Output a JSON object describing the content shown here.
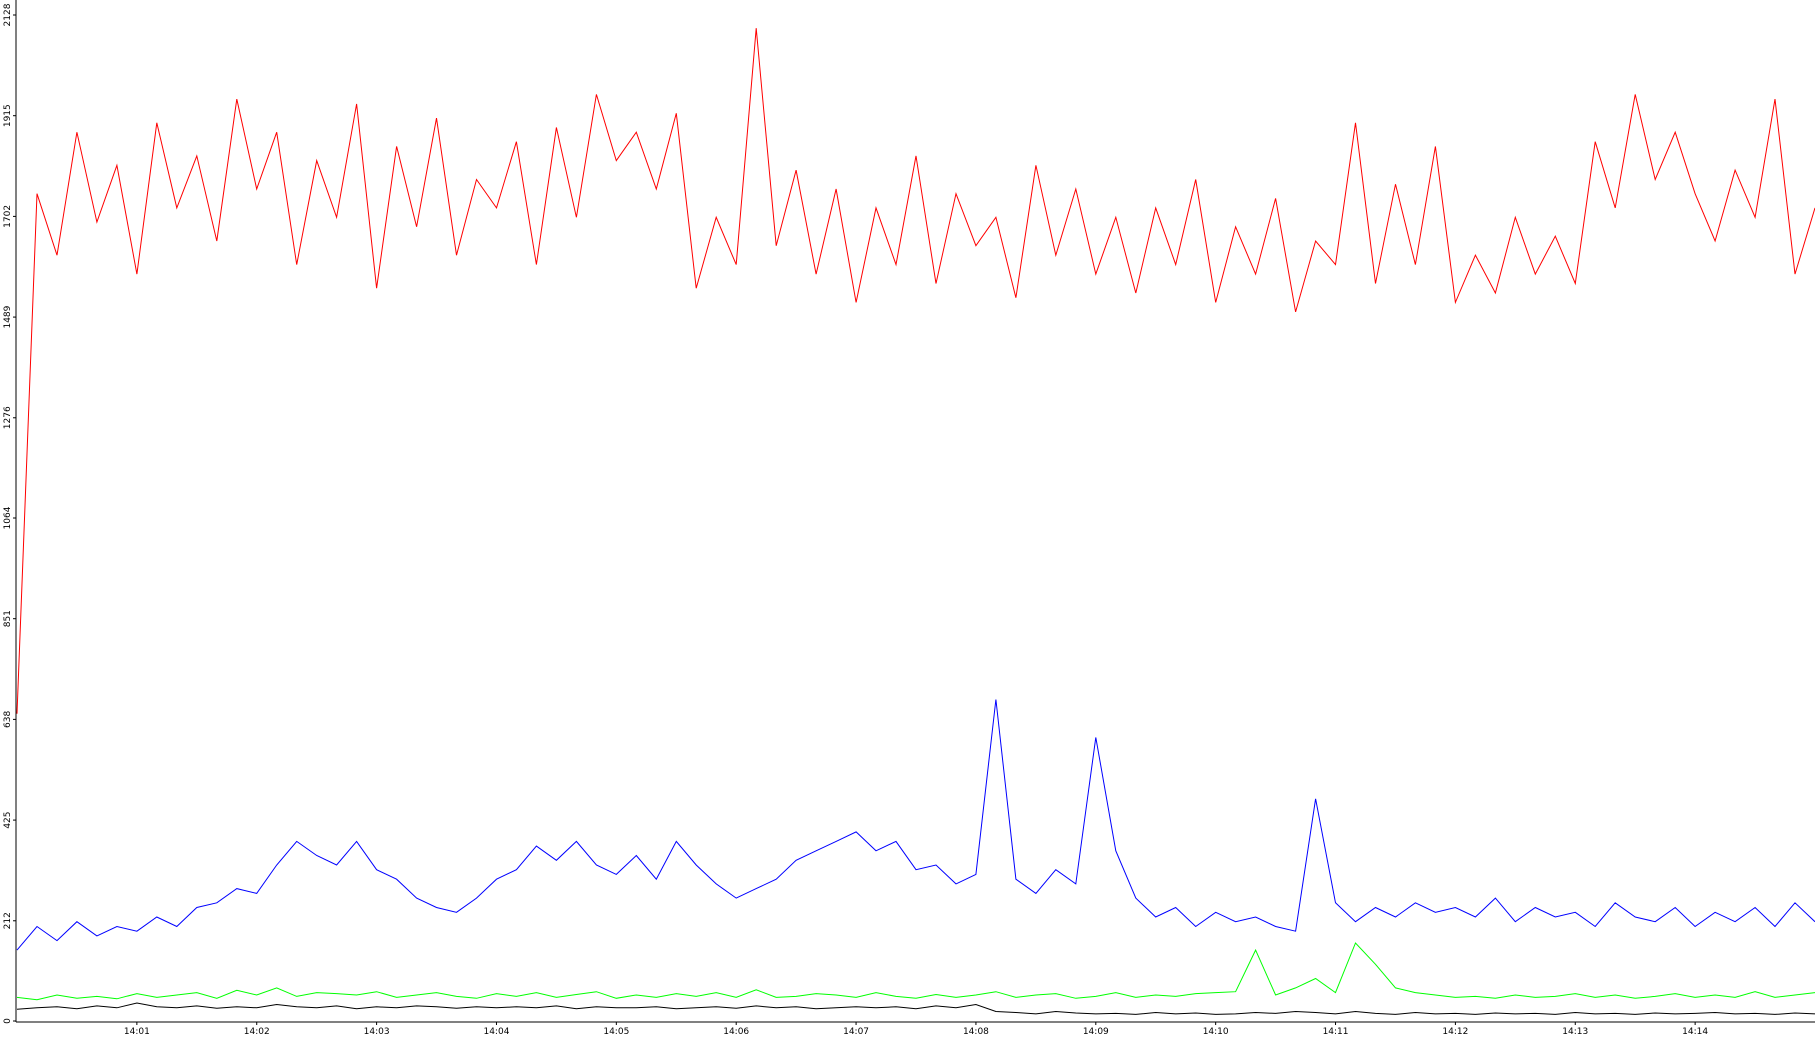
{
  "chart_data": {
    "type": "line",
    "categories": [
      null,
      null,
      null,
      null,
      null,
      null,
      "14:01",
      null,
      null,
      null,
      null,
      null,
      "14:02",
      null,
      null,
      null,
      null,
      null,
      "14:03",
      null,
      null,
      null,
      null,
      null,
      "14:04",
      null,
      null,
      null,
      null,
      null,
      "14:05",
      null,
      null,
      null,
      null,
      null,
      "14:06",
      null,
      null,
      null,
      null,
      null,
      "14:07",
      null,
      null,
      null,
      null,
      null,
      "14:08",
      null,
      null,
      null,
      null,
      null,
      "14:09",
      null,
      null,
      null,
      null,
      null,
      "14:10",
      null,
      null,
      null,
      null,
      null,
      "14:11",
      null,
      null,
      null,
      null,
      null,
      "14:12",
      null,
      null,
      null,
      null,
      null,
      "14:13",
      null,
      null,
      null,
      null,
      null,
      "14:14",
      null,
      null,
      null,
      null,
      null,
      null
    ],
    "series": [
      {
        "color": "#ff0000",
        "values": [
          650,
          1750,
          1620,
          1880,
          1690,
          1810,
          1580,
          1900,
          1720,
          1830,
          1650,
          1950,
          1760,
          1880,
          1600,
          1820,
          1700,
          1940,
          1550,
          1850,
          1680,
          1910,
          1620,
          1780,
          1720,
          1860,
          1600,
          1890,
          1700,
          1960,
          1820,
          1880,
          1760,
          1920,
          1550,
          1700,
          1600,
          2100,
          1640,
          1800,
          1580,
          1760,
          1520,
          1720,
          1600,
          1830,
          1560,
          1750,
          1640,
          1700,
          1530,
          1810,
          1620,
          1760,
          1580,
          1700,
          1540,
          1720,
          1600,
          1780,
          1520,
          1680,
          1580,
          1740,
          1500,
          1650,
          1600,
          1900,
          1560,
          1770,
          1600,
          1850,
          1520,
          1620,
          1540,
          1700,
          1580,
          1660,
          1560,
          1860,
          1720,
          1960,
          1780,
          1880,
          1750,
          1650,
          1800,
          1700,
          1950,
          1580,
          1720
        ]
      },
      {
        "color": "#0000ff",
        "values": [
          150,
          200,
          170,
          210,
          180,
          200,
          190,
          220,
          200,
          240,
          250,
          280,
          270,
          330,
          380,
          350,
          330,
          380,
          320,
          300,
          260,
          240,
          230,
          260,
          300,
          320,
          370,
          340,
          380,
          330,
          310,
          350,
          300,
          380,
          330,
          290,
          260,
          280,
          300,
          340,
          360,
          380,
          400,
          360,
          380,
          320,
          330,
          290,
          310,
          680,
          300,
          270,
          320,
          290,
          600,
          360,
          260,
          220,
          240,
          200,
          230,
          210,
          220,
          200,
          190,
          470,
          250,
          210,
          240,
          220,
          250,
          230,
          240,
          220,
          260,
          210,
          240,
          220,
          230,
          200,
          250,
          220,
          210,
          240,
          200,
          230,
          210,
          240,
          200,
          250,
          210
        ]
      },
      {
        "color": "#00ff00",
        "values": [
          50,
          45,
          55,
          48,
          52,
          47,
          58,
          50,
          55,
          60,
          48,
          65,
          55,
          70,
          52,
          60,
          58,
          55,
          62,
          50,
          55,
          60,
          52,
          48,
          58,
          52,
          60,
          50,
          56,
          62,
          48,
          55,
          50,
          58,
          52,
          60,
          50,
          66,
          50,
          52,
          58,
          55,
          50,
          60,
          52,
          48,
          56,
          50,
          55,
          62,
          50,
          55,
          58,
          48,
          52,
          60,
          50,
          55,
          52,
          58,
          60,
          62,
          150,
          55,
          70,
          90,
          60,
          165,
          120,
          70,
          60,
          55,
          50,
          52,
          48,
          55,
          50,
          52,
          58,
          50,
          55,
          48,
          52,
          58,
          50,
          55,
          50,
          62,
          50,
          55,
          60
        ]
      },
      {
        "color": "#000000",
        "values": [
          25,
          28,
          30,
          26,
          32,
          28,
          38,
          30,
          28,
          32,
          27,
          30,
          28,
          35,
          30,
          28,
          32,
          26,
          30,
          28,
          32,
          30,
          27,
          30,
          28,
          30,
          28,
          32,
          26,
          30,
          28,
          28,
          30,
          26,
          28,
          30,
          27,
          32,
          28,
          30,
          26,
          28,
          30,
          28,
          30,
          26,
          32,
          28,
          35,
          20,
          18,
          15,
          20,
          17,
          15,
          16,
          14,
          18,
          15,
          17,
          14,
          15,
          18,
          16,
          20,
          18,
          15,
          20,
          16,
          14,
          18,
          15,
          16,
          14,
          17,
          15,
          16,
          14,
          18,
          15,
          16,
          14,
          17,
          15,
          16,
          18,
          15,
          16,
          14,
          17,
          15
        ]
      }
    ],
    "ylim": [
      0,
      2128
    ],
    "yticks": [
      0,
      212,
      425,
      638,
      851,
      1064,
      1276,
      1489,
      1702,
      1915,
      2128
    ]
  }
}
